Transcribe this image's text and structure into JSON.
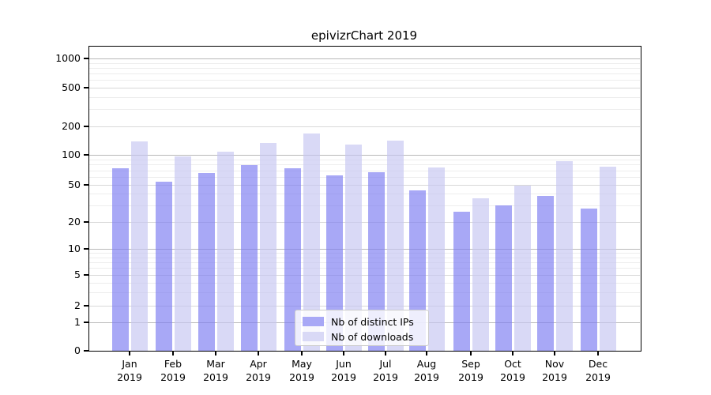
{
  "chart_data": {
    "type": "bar",
    "title": "epivizrChart 2019",
    "categories": [
      "Jan",
      "Feb",
      "Mar",
      "Apr",
      "May",
      "Jun",
      "Jul",
      "Aug",
      "Sep",
      "Oct",
      "Nov",
      "Dec"
    ],
    "category_year": "2019",
    "series": [
      {
        "name": "Nb of distinct IPs",
        "color": "#a8a8f6",
        "fill": "rgba(123,123,241,0.66)",
        "values": [
          74,
          54,
          66,
          79,
          74,
          62,
          67,
          44,
          26,
          30,
          38,
          28
        ]
      },
      {
        "name": "Nb of downloads",
        "color": "#d9d9f6",
        "fill": "rgba(197,197,241,0.66)",
        "values": [
          140,
          96,
          108,
          134,
          168,
          128,
          141,
          75,
          36,
          49,
          86,
          76
        ]
      }
    ],
    "yscale": "symlog",
    "y_ticks": [
      0,
      1,
      2,
      5,
      10,
      20,
      50,
      100,
      200,
      500,
      1000
    ],
    "ylim": [
      0,
      1400
    ],
    "xlabel": "",
    "ylabel": "",
    "grid": true,
    "legend_position": "lower center"
  }
}
